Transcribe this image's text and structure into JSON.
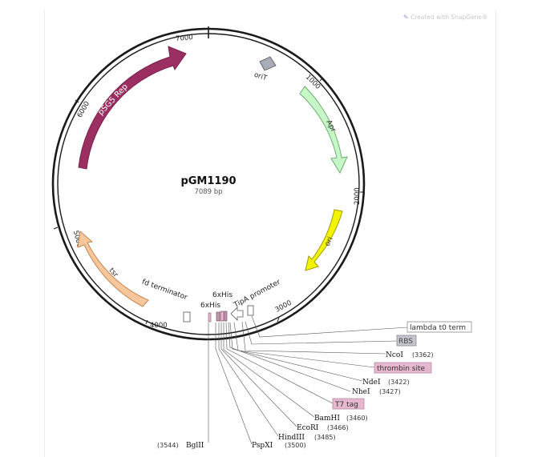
{
  "watermark": "Created with SnapGene®",
  "plasmid": {
    "name": "pGM1190",
    "length": "7089 bp"
  },
  "ticks": [
    "1000",
    "2000",
    "3000",
    "4000",
    "5000",
    "6000",
    "7000"
  ],
  "features": {
    "pSG5_Rep": "pSG5 Rep",
    "oriT": "oriT",
    "Apr": "Apr",
    "ori": "ori",
    "tsr": "tsr",
    "fd_terminator": "fd terminator",
    "six_his_a": "6xHis",
    "six_his_b": "6xHis",
    "TipA_promoter": "TipA promoter",
    "lambda_t0": "lambda t0 term",
    "RBS": "RBS",
    "thrombin": "thrombin site",
    "T7_tag": "T7 tag"
  },
  "sites": {
    "NcoI": {
      "name": "NcoI",
      "pos": "(3362)"
    },
    "NdeI": {
      "name": "NdeI",
      "pos": "(3422)"
    },
    "NheI": {
      "name": "NheI",
      "pos": "(3427)"
    },
    "BamHI": {
      "name": "BamHI",
      "pos": "(3460)"
    },
    "EcoRI": {
      "name": "EcoRI",
      "pos": "(3466)"
    },
    "HindIII": {
      "name": "HindIII",
      "pos": "(3485)"
    },
    "PspXI": {
      "name": "PspXI",
      "pos": "(3500)"
    },
    "BglII": {
      "name": "BglII",
      "pos": "(3544)"
    }
  },
  "colors": {
    "backbone": "#1a1a1a",
    "pSG5_Rep": "#9b2f62",
    "Apr": "#c7f7c9",
    "ori": "#f4f400",
    "tsr": "#f7c79b",
    "oriT": "#a8adb8",
    "feature_pink": "#e6b8cf",
    "RBS": "#c5c5cf",
    "watermark": "#c9c9c9"
  }
}
